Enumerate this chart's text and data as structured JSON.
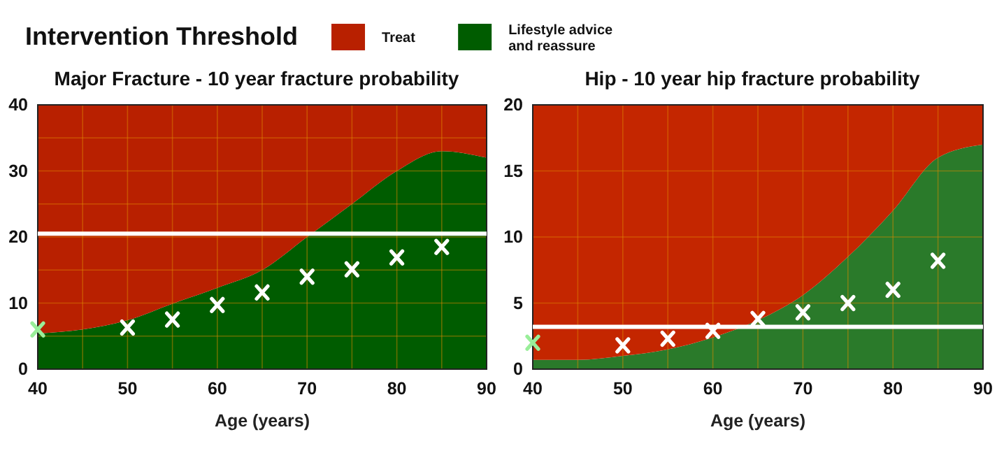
{
  "chart_data": [
    {
      "type": "area",
      "title": "Major Fracture - 10 year fracture probability",
      "legend_title": "Intervention Threshold",
      "xlabel": "Age (years)",
      "x": [
        40,
        45,
        50,
        55,
        60,
        65,
        70,
        75,
        80,
        85,
        90
      ],
      "stacked": true,
      "series": [
        {
          "name": "Lifestyle advice and reassure",
          "color": "#005c00",
          "values": [
            5.4,
            6.0,
            7.4,
            9.9,
            12.3,
            15.0,
            20.0,
            25.0,
            30.0,
            33.0,
            32.0
          ]
        },
        {
          "name": "Treat",
          "color": "#b82000",
          "values": [
            34.6,
            34.0,
            32.6,
            30.1,
            27.7,
            25.0,
            20.0,
            15.0,
            10.0,
            7.0,
            8.0
          ]
        },
        {
          "type": "scatter",
          "color": "#ffffff",
          "marker": "cross",
          "x": [
            50,
            55,
            60,
            65,
            70,
            75,
            80,
            85
          ],
          "values": [
            6.3,
            7.5,
            9.7,
            11.6,
            14.0,
            15.1,
            16.9,
            18.5
          ]
        },
        {
          "type": "scatter",
          "color": "#99ee99",
          "marker": "cross",
          "x": [
            40
          ],
          "values": [
            6.0
          ]
        }
      ],
      "xlim": [
        40,
        90
      ],
      "xticks": [
        40,
        {
          "value": 45,
          "label": null
        },
        50,
        {
          "value": 55,
          "label": null
        },
        60,
        {
          "value": 65,
          "label": null
        },
        70,
        {
          "value": 75,
          "label": null
        },
        80,
        {
          "value": 85,
          "label": null
        },
        90
      ],
      "ylim": [
        0,
        40
      ],
      "yticks": [
        0,
        {
          "value": 5,
          "label": null
        },
        10,
        {
          "value": 15,
          "label": null
        },
        20,
        {
          "value": 25,
          "label": null
        },
        30,
        {
          "value": 35,
          "label": null
        },
        40
      ],
      "grid": true,
      "legend": "top",
      "ref_lines": [
        {
          "axis": "y",
          "value": 20.5,
          "color": "#ffffff"
        }
      ]
    },
    {
      "type": "area",
      "title": "Hip - 10 year hip fracture probability",
      "xlabel": "Age (years)",
      "x": [
        40,
        45,
        50,
        55,
        60,
        65,
        70,
        75,
        80,
        85,
        90
      ],
      "stacked": true,
      "series": [
        {
          "color": "#2a7a2a",
          "values": [
            0.7,
            0.7,
            1.0,
            1.5,
            2.4,
            3.7,
            5.6,
            8.5,
            12.0,
            16.0,
            17.0
          ]
        },
        {
          "color": "#c42600",
          "values": [
            19.3,
            19.3,
            19.0,
            18.5,
            17.6,
            16.3,
            14.4,
            11.5,
            8.0,
            4.0,
            3.0
          ]
        },
        {
          "type": "scatter",
          "color": "#ffffff",
          "marker": "cross",
          "x": [
            50,
            55,
            60,
            65,
            70,
            75,
            80,
            85
          ],
          "values": [
            1.8,
            2.3,
            2.9,
            3.8,
            4.3,
            5.0,
            6.0,
            8.2
          ]
        },
        {
          "type": "scatter",
          "color": "#99ee99",
          "marker": "cross",
          "x": [
            40
          ],
          "values": [
            2.0
          ]
        }
      ],
      "xlim": [
        40,
        90
      ],
      "xticks": [
        40,
        {
          "value": 45,
          "label": null
        },
        50,
        {
          "value": 55,
          "label": null
        },
        60,
        {
          "value": 65,
          "label": null
        },
        70,
        {
          "value": 75,
          "label": null
        },
        80,
        {
          "value": 85,
          "label": null
        },
        90
      ],
      "ylim": [
        0,
        20
      ],
      "yticks": [
        0,
        5,
        10,
        15,
        20
      ],
      "grid": true,
      "ref_lines": [
        {
          "axis": "y",
          "value": 3.2,
          "color": "#ffffff"
        }
      ]
    }
  ]
}
